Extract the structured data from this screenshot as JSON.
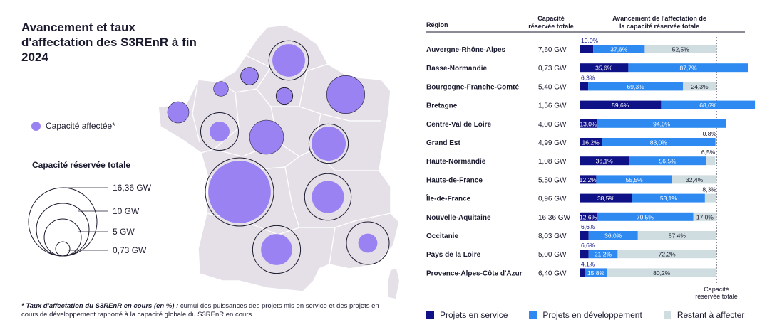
{
  "title": "Avancement et taux d'affectation des S3REnR à fin 2024",
  "map_legend": {
    "affected_label": "Capacité affectée*",
    "capacity_title": "Capacité réservée totale",
    "sizes": [
      "16,36 GW",
      "10 GW",
      "5 GW",
      "0,73 GW"
    ]
  },
  "footnote": {
    "bold": "* Taux d'affectation du S3REnR en cours (en %) :",
    "text": " cumul des puissances des projets mis en service et des projets en cours de développement rapporté à la capacité globale du S3REnR en cours."
  },
  "colors": {
    "service": "#0f1287",
    "dev": "#2e8af0",
    "rest": "#cfdde0",
    "affected": "#9a82f2",
    "map": "#e5e0e7"
  },
  "chart_data": {
    "type": "bar",
    "headers": {
      "region": "Région",
      "capacity": "Capacité réservée totale",
      "progress": "Avancement de l'affectation de la capacité réservée totale",
      "reference": "Capacité réservée totale"
    },
    "legend": [
      "Projets en service",
      "Projets en développement",
      "Restant à affecter"
    ],
    "rows": [
      {
        "region": "Auvergne-Rhône-Alpes",
        "capacity": "7,60 GW",
        "service": 10.0,
        "dev": 37.6,
        "rest": 52.5,
        "labels": [
          "10,0%",
          "37,6%",
          "52,5%"
        ]
      },
      {
        "region": "Basse-Normandie",
        "capacity": "0,73 GW",
        "service": 35.6,
        "dev": 87.7,
        "rest": 0,
        "labels": [
          "35,6%",
          "87,7%",
          ""
        ]
      },
      {
        "region": "Bourgogne-Franche-Comté",
        "capacity": "5,40 GW",
        "service": 6.3,
        "dev": 69.3,
        "rest": 24.3,
        "labels": [
          "6,3%",
          "69,3%",
          "24,3%"
        ]
      },
      {
        "region": "Bretagne",
        "capacity": "1,56 GW",
        "service": 59.6,
        "dev": 68.6,
        "rest": 0,
        "labels": [
          "59,6%",
          "68,6%",
          ""
        ]
      },
      {
        "region": "Centre-Val de Loire",
        "capacity": "4,00 GW",
        "service": 13.0,
        "dev": 94.0,
        "rest": 0,
        "labels": [
          "13,0%",
          "94,0%",
          ""
        ]
      },
      {
        "region": "Grand Est",
        "capacity": "4,99 GW",
        "service": 16.2,
        "dev": 83.0,
        "rest": 0.8,
        "labels": [
          "16,2%",
          "83,0%",
          "0,8%"
        ]
      },
      {
        "region": "Haute-Normandie",
        "capacity": "1,08 GW",
        "service": 36.1,
        "dev": 56.5,
        "rest": 6.5,
        "labels": [
          "36,1%",
          "56,5%",
          "6,5%"
        ]
      },
      {
        "region": "Hauts-de-France",
        "capacity": "5,50 GW",
        "service": 12.2,
        "dev": 55.5,
        "rest": 32.4,
        "labels": [
          "12,2%",
          "55,5%",
          "32,4%"
        ]
      },
      {
        "region": "Île-de-France",
        "capacity": "0,96 GW",
        "service": 38.5,
        "dev": 53.1,
        "rest": 8.3,
        "labels": [
          "38,5%",
          "53,1%",
          "8,3%"
        ]
      },
      {
        "region": "Nouvelle-Aquitaine",
        "capacity": "16,36 GW",
        "service": 12.6,
        "dev": 70.5,
        "rest": 17.0,
        "labels": [
          "12,6%",
          "70,5%",
          "17,0%"
        ]
      },
      {
        "region": "Occitanie",
        "capacity": "8,03 GW",
        "service": 6.6,
        "dev": 36.0,
        "rest": 57.4,
        "labels": [
          "6,6%",
          "36,0%",
          "57,4%"
        ]
      },
      {
        "region": "Pays de la Loire",
        "capacity": "5,00 GW",
        "service": 6.6,
        "dev": 21.2,
        "rest": 72.2,
        "labels": [
          "6,6%",
          "21,2%",
          "72,2%"
        ]
      },
      {
        "region": "Provence-Alpes-Côte d'Azur",
        "capacity": "6,40 GW",
        "service": 4.1,
        "dev": 15.8,
        "rest": 80.2,
        "labels": [
          "4,1%",
          "15,8%",
          "80,2%"
        ]
      }
    ]
  }
}
